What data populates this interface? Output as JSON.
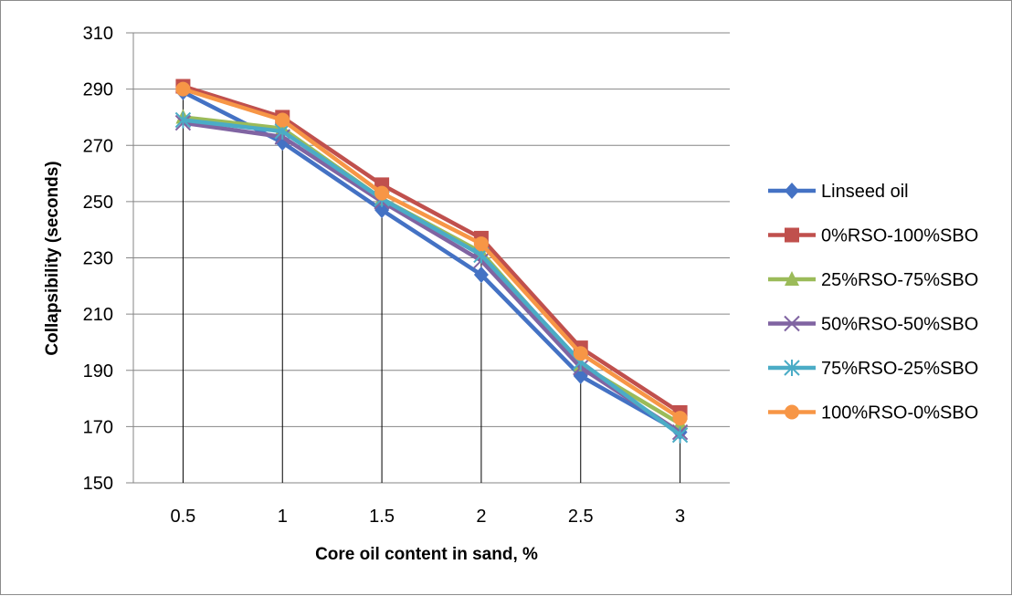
{
  "chart_data": {
    "type": "line",
    "title": "",
    "xlabel": "Core oil content in sand, %",
    "ylabel": "Collapsibility  (seconds)",
    "categories": [
      "0.5",
      "1",
      "1.5",
      "2",
      "2.5",
      "3"
    ],
    "ylim": [
      150,
      310
    ],
    "yticks": [
      "150",
      "170",
      "190",
      "210",
      "230",
      "250",
      "270",
      "290",
      "310"
    ],
    "grid": true,
    "legend_position": "right",
    "drop_lines": true,
    "series": [
      {
        "name": "Linseed oil",
        "color": "#4472c4",
        "marker": "diamond",
        "values": [
          289,
          271,
          247,
          224,
          188,
          168
        ]
      },
      {
        "name": "0%RSO-100%SBO",
        "color": "#c0504d",
        "marker": "square",
        "values": [
          291,
          280,
          256,
          237,
          198,
          175
        ]
      },
      {
        "name": "25%RSO-75%SBO",
        "color": "#9bbb59",
        "marker": "triangle",
        "values": [
          280,
          276,
          251,
          232,
          192,
          171
        ]
      },
      {
        "name": "50%RSO-50%SBO",
        "color": "#8064a2",
        "marker": "x",
        "values": [
          278,
          273,
          250,
          229,
          191,
          168
        ]
      },
      {
        "name": "75%RSO-25%SBO",
        "color": "#4bacc6",
        "marker": "star",
        "values": [
          279,
          275,
          251,
          231,
          193,
          167
        ]
      },
      {
        "name": "100%RSO-0%SBO",
        "color": "#f79646",
        "marker": "circle",
        "values": [
          290,
          279,
          253,
          235,
          196,
          173
        ]
      }
    ]
  }
}
